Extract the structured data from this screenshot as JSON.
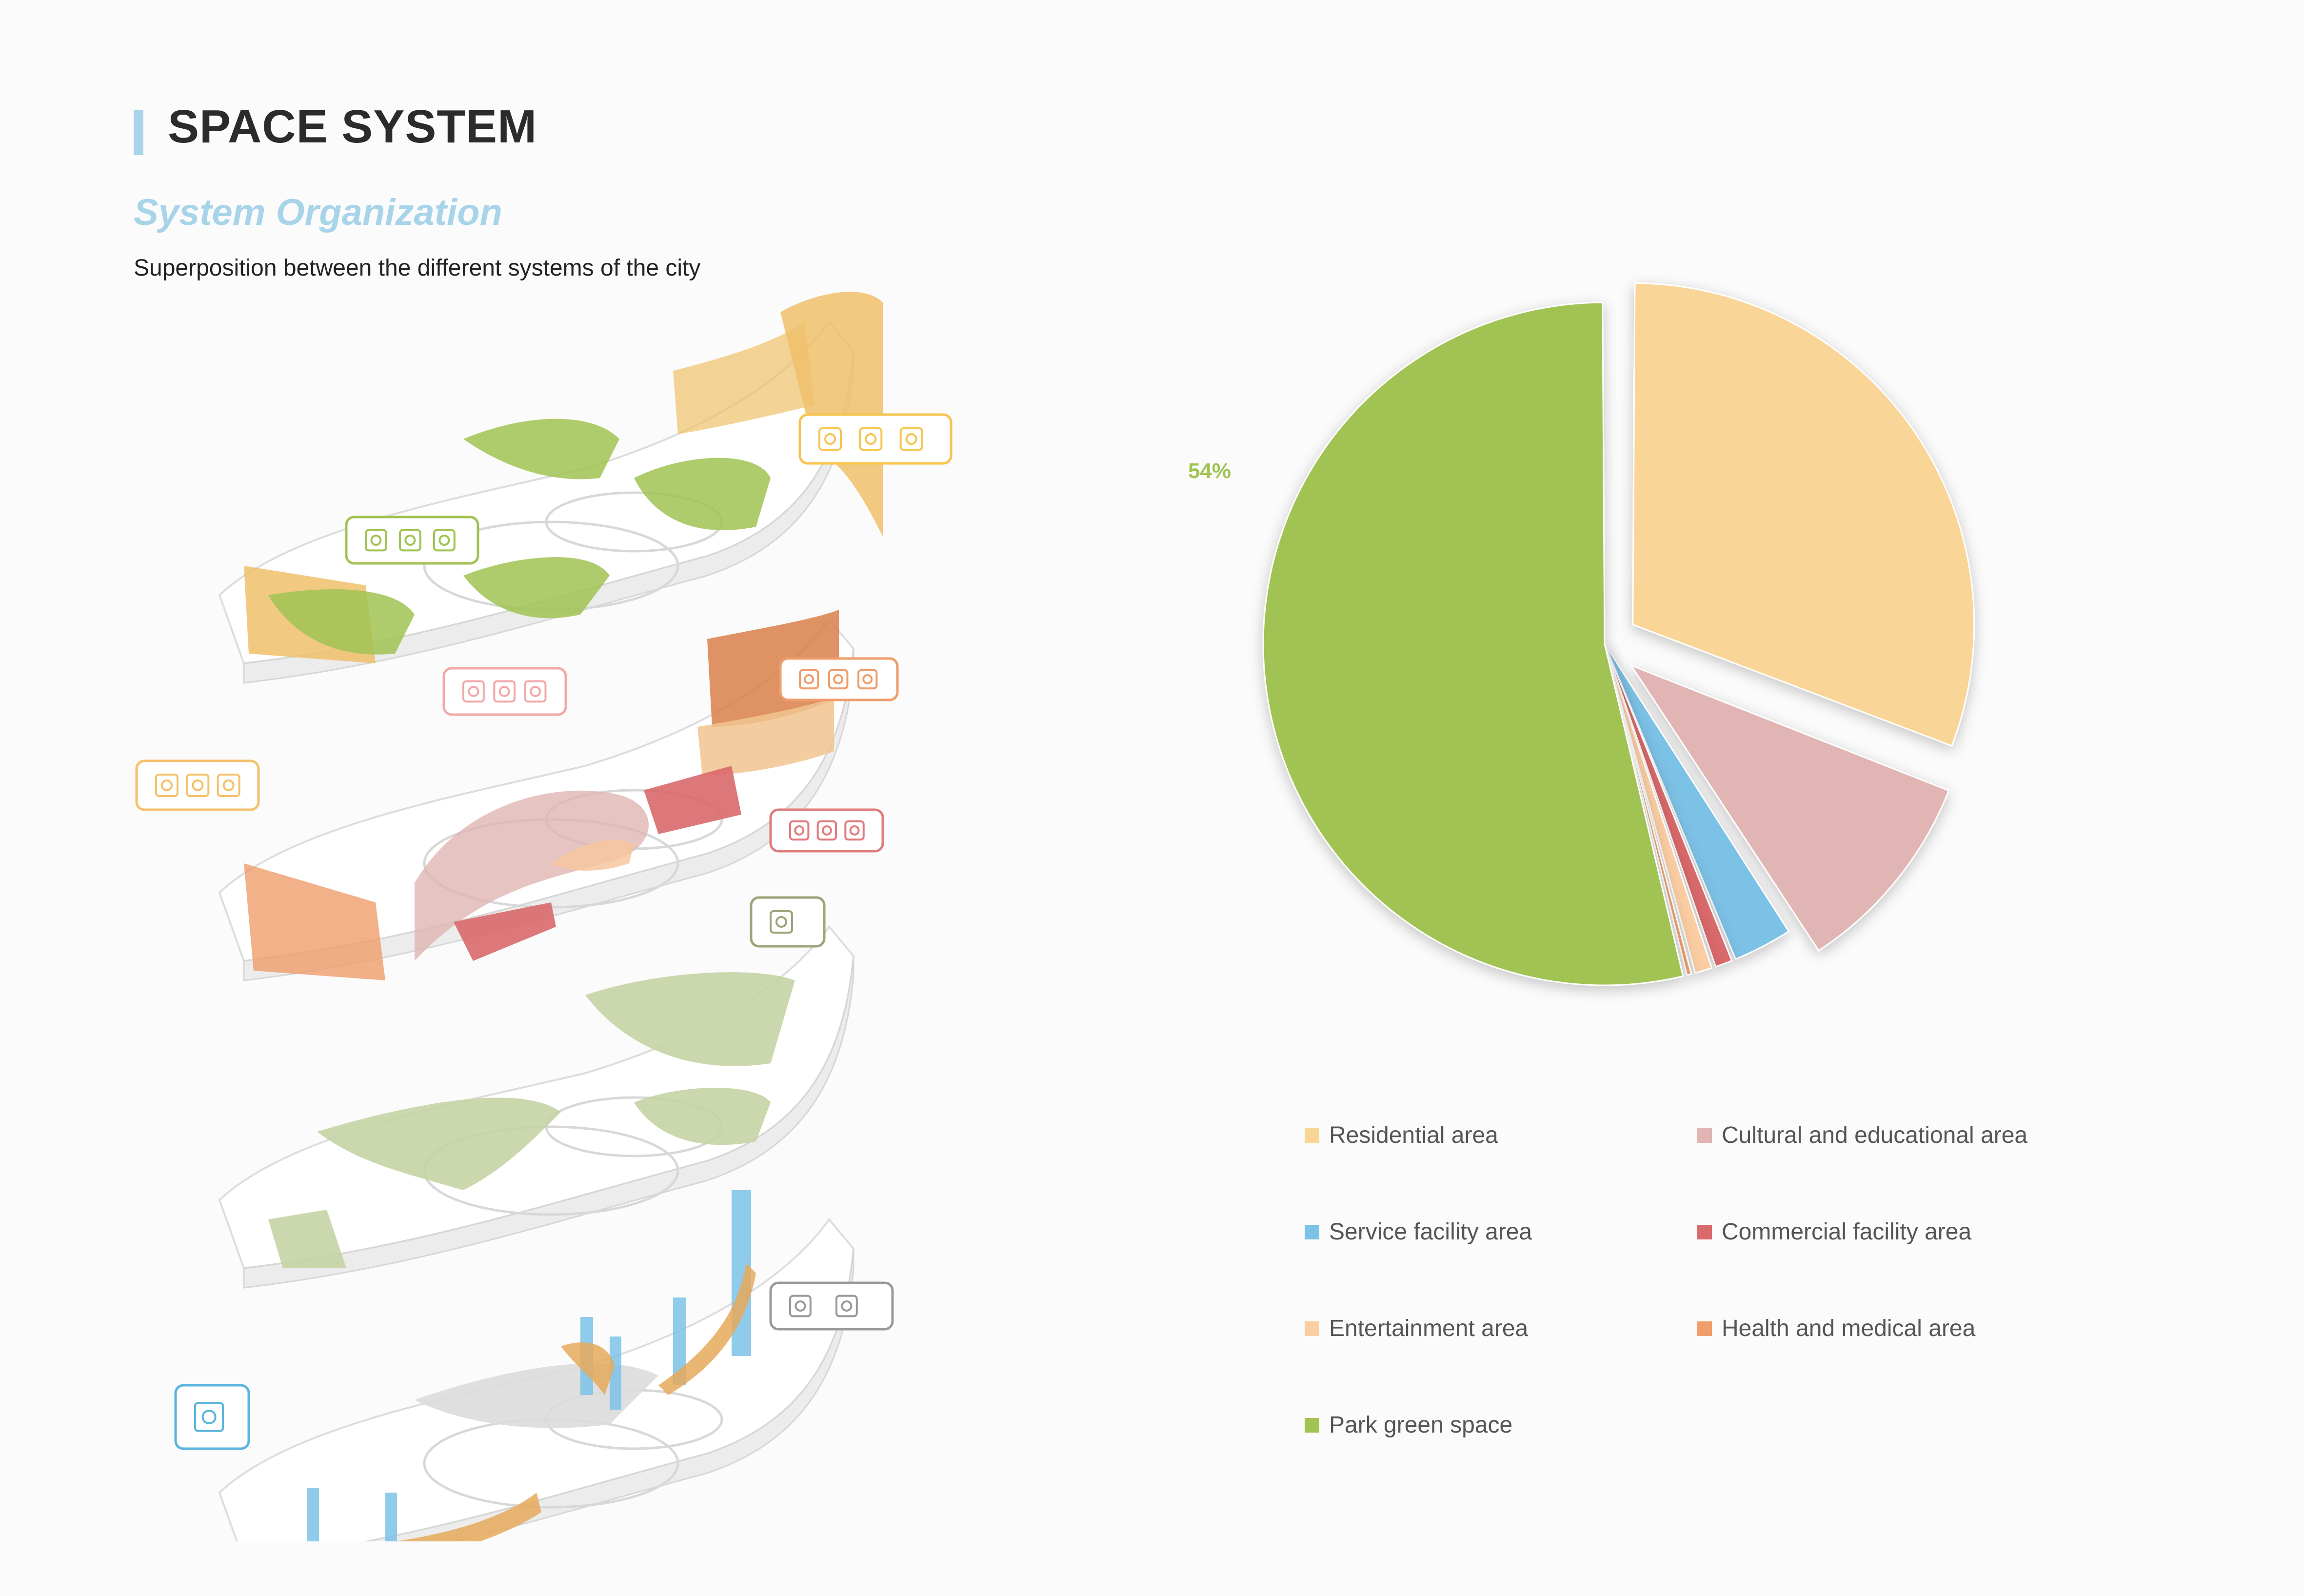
{
  "header": {
    "title": "SPACE SYSTEM",
    "subtitle": "System Organization",
    "description": "Superposition between the different systems of the city"
  },
  "colors": {
    "accent": "#a8d4ea",
    "residential": "#f9d597",
    "cultural": "#e0b5b3",
    "service": "#7bc2e6",
    "commercial": "#d9696b",
    "entertainment": "#fbcda3",
    "health": "#ef9d6b",
    "park": "#a1c353"
  },
  "chart_data": {
    "type": "pie",
    "title": "",
    "legend_placement": "bottom",
    "series": [
      {
        "name": "Residential area",
        "value": 31,
        "label": "31%",
        "color": "#f9d597",
        "label_color": "#7bc2e6",
        "exploded": true
      },
      {
        "name": "Cultural and educational area",
        "value": 10,
        "label": "10%",
        "color": "#e0b5b3",
        "label_color": "#a8d4ea",
        "exploded": true
      },
      {
        "name": "Service facility area",
        "value": 3,
        "label": "3%",
        "color": "#7bc2e6",
        "label_color": "#f5c16b",
        "exploded": false
      },
      {
        "name": "Commercial facility area",
        "value": 1,
        "label": "1%",
        "color": "#d9696b",
        "label_color": "#f3b37a",
        "exploded": false
      },
      {
        "name": "Entertainment area",
        "value": 1,
        "label": "1%",
        "color": "#fbcda3",
        "label_color": "#f0a9a9",
        "exploded": false
      },
      {
        "name": "Health and medical area",
        "value": 0.4,
        "label": "0%",
        "color": "#ef9d6b",
        "label_color": "#e07b7d",
        "exploded": false
      },
      {
        "name": "Park green space",
        "value": 54,
        "label": "54%",
        "color": "#a1c353",
        "label_color": "#a1c353",
        "exploded": false
      }
    ]
  },
  "legend": [
    {
      "label": "Residential area",
      "color": "#f9d597"
    },
    {
      "label": "Cultural and educational area",
      "color": "#e0b5b3"
    },
    {
      "label": "Service facility area",
      "color": "#7bc2e6"
    },
    {
      "label": "Commercial facility area",
      "color": "#d9696b"
    },
    {
      "label": "Entertainment area",
      "color": "#fbcda3"
    },
    {
      "label": "Health and medical area",
      "color": "#ef9d6b"
    },
    {
      "label": "Park green space",
      "color": "#a1c353"
    }
  ],
  "diagram": {
    "layers": [
      {
        "name": "residential-and-green-layer",
        "fill": "#a1c353",
        "accent": "#f0c06a",
        "callout_color": "#f5c54e",
        "icons": [
          "crib-icon",
          "toys-icon",
          "shopping-icon"
        ],
        "callout2_color": "#a1c353",
        "icons2": [
          "tent-icon",
          "house-icon",
          "kiosk-icon"
        ]
      },
      {
        "name": "culture-commerce-layer",
        "fill": "#e0b5b3",
        "accent": "#d9696b",
        "callout_color": "#ef9d6b",
        "icons": [
          "basketball-icon",
          "swimming-icon",
          "cycling-icon"
        ],
        "callout2_color": "#e07b7d",
        "icons2": [
          "cake-icon",
          "shop-icon",
          "drink-icon"
        ],
        "callout3_color": "#f5c16b",
        "icons3": [
          "balloon-icon",
          "party-icon",
          "megaphone-icon"
        ],
        "callout4_color": "#f0a9a9",
        "icons4": [
          "microscope-icon",
          "lab-icon",
          "art-icon"
        ]
      },
      {
        "name": "park-layer",
        "fill": "#c5d3a4",
        "callout_color": "#9aa57a",
        "icons": [
          "train-icon"
        ]
      },
      {
        "name": "transport-layer",
        "fill": "#7bc2e6",
        "accent": "#e6a95a",
        "callout_color": "#999999",
        "icons": [
          "parking-icon",
          "scooter-icon"
        ],
        "callout2_color": "#5ab4dc",
        "icons2": [
          "elevator-icon"
        ]
      }
    ]
  }
}
